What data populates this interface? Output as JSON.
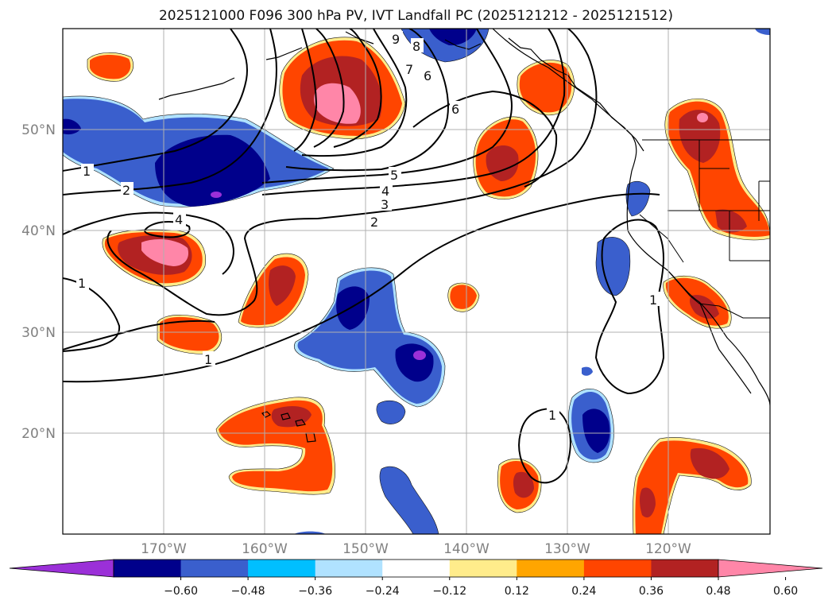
{
  "title": "2025121000 F096 300 hPa PV, IVT Landfall PC (2025121212 - 2025121512)",
  "map": {
    "lat_labels": [
      "50°N",
      "40°N",
      "30°N",
      "20°N"
    ],
    "lon_labels": [
      "170°W",
      "160°W",
      "150°W",
      "140°W",
      "130°W",
      "120°W"
    ],
    "gridlines": true
  },
  "contour_labels": [
    "1",
    "2",
    "4",
    "1",
    "1",
    "5",
    "4",
    "3",
    "2",
    "6",
    "6",
    "7",
    "8",
    "9",
    "1",
    "1"
  ],
  "colorbar": {
    "ticks": [
      "−0.60",
      "−0.48",
      "−0.36",
      "−0.24",
      "−0.12",
      "0.12",
      "0.24",
      "0.36",
      "0.48",
      "0.60"
    ],
    "colors": [
      "#9b30d8",
      "#00008b",
      "#3a5fcd",
      "#00bfff",
      "#b0e2ff",
      "#ffffff",
      "#ffec8b",
      "#ffa500",
      "#ff4500",
      "#b22222",
      "#ff86a8"
    ]
  }
}
